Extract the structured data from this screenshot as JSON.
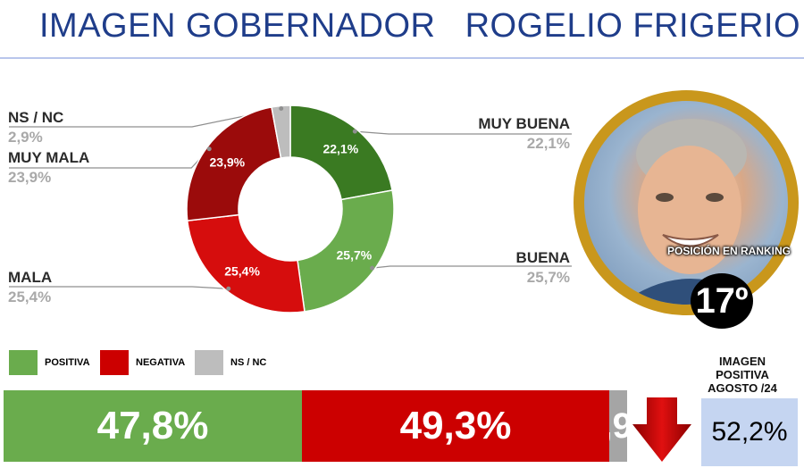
{
  "header": {
    "title": "IMAGEN GOBERNADOR   ROGELIO FRIGERIO"
  },
  "chart_data": [
    {
      "type": "pie",
      "variant": "donut",
      "categories": [
        "MUY BUENA",
        "BUENA",
        "MALA",
        "MUY MALA",
        "NS / NC"
      ],
      "values": [
        22.1,
        25.7,
        25.4,
        23.9,
        2.9
      ],
      "value_labels": [
        "22,1%",
        "25,7%",
        "25,4%",
        "23,9%",
        ""
      ],
      "colors": [
        "#3a7a22",
        "#6aac4d",
        "#d60d0d",
        "#9b0b0b",
        "#bdbdbd"
      ],
      "callouts": [
        {
          "label": "NS / NC",
          "value": "2,9%"
        },
        {
          "label": "MUY MALA",
          "value": "23,9%"
        },
        {
          "label": "MALA",
          "value": "25,4%"
        },
        {
          "label": "MUY BUENA",
          "value": "22,1%"
        },
        {
          "label": "BUENA",
          "value": "25,7%"
        }
      ]
    },
    {
      "type": "bar",
      "variant": "stacked-horizontal",
      "categories": [
        "POSITIVA",
        "NEGATIVA",
        "NS / NC"
      ],
      "values": [
        47.8,
        49.3,
        2.9
      ],
      "value_labels": [
        "47,8%",
        "49,3%",
        "2,9"
      ],
      "colors": [
        "#6aac4d",
        "#cc0000",
        "#a5a5a5"
      ],
      "legend": [
        {
          "label": "POSITIVA",
          "color": "#6aac4d"
        },
        {
          "label": "NEGATIVA",
          "color": "#cc0000"
        },
        {
          "label": "NS / NC",
          "color": "#bdbdbd"
        }
      ]
    }
  ],
  "ranking": {
    "label": "POSICIÓN EN RANKING",
    "value": "17º"
  },
  "reference": {
    "title": "IMAGEN POSITIVA AGOSTO /24",
    "value": "52,2%"
  },
  "trend_icon": "down-arrow-icon",
  "trend_color": "#cc0000"
}
